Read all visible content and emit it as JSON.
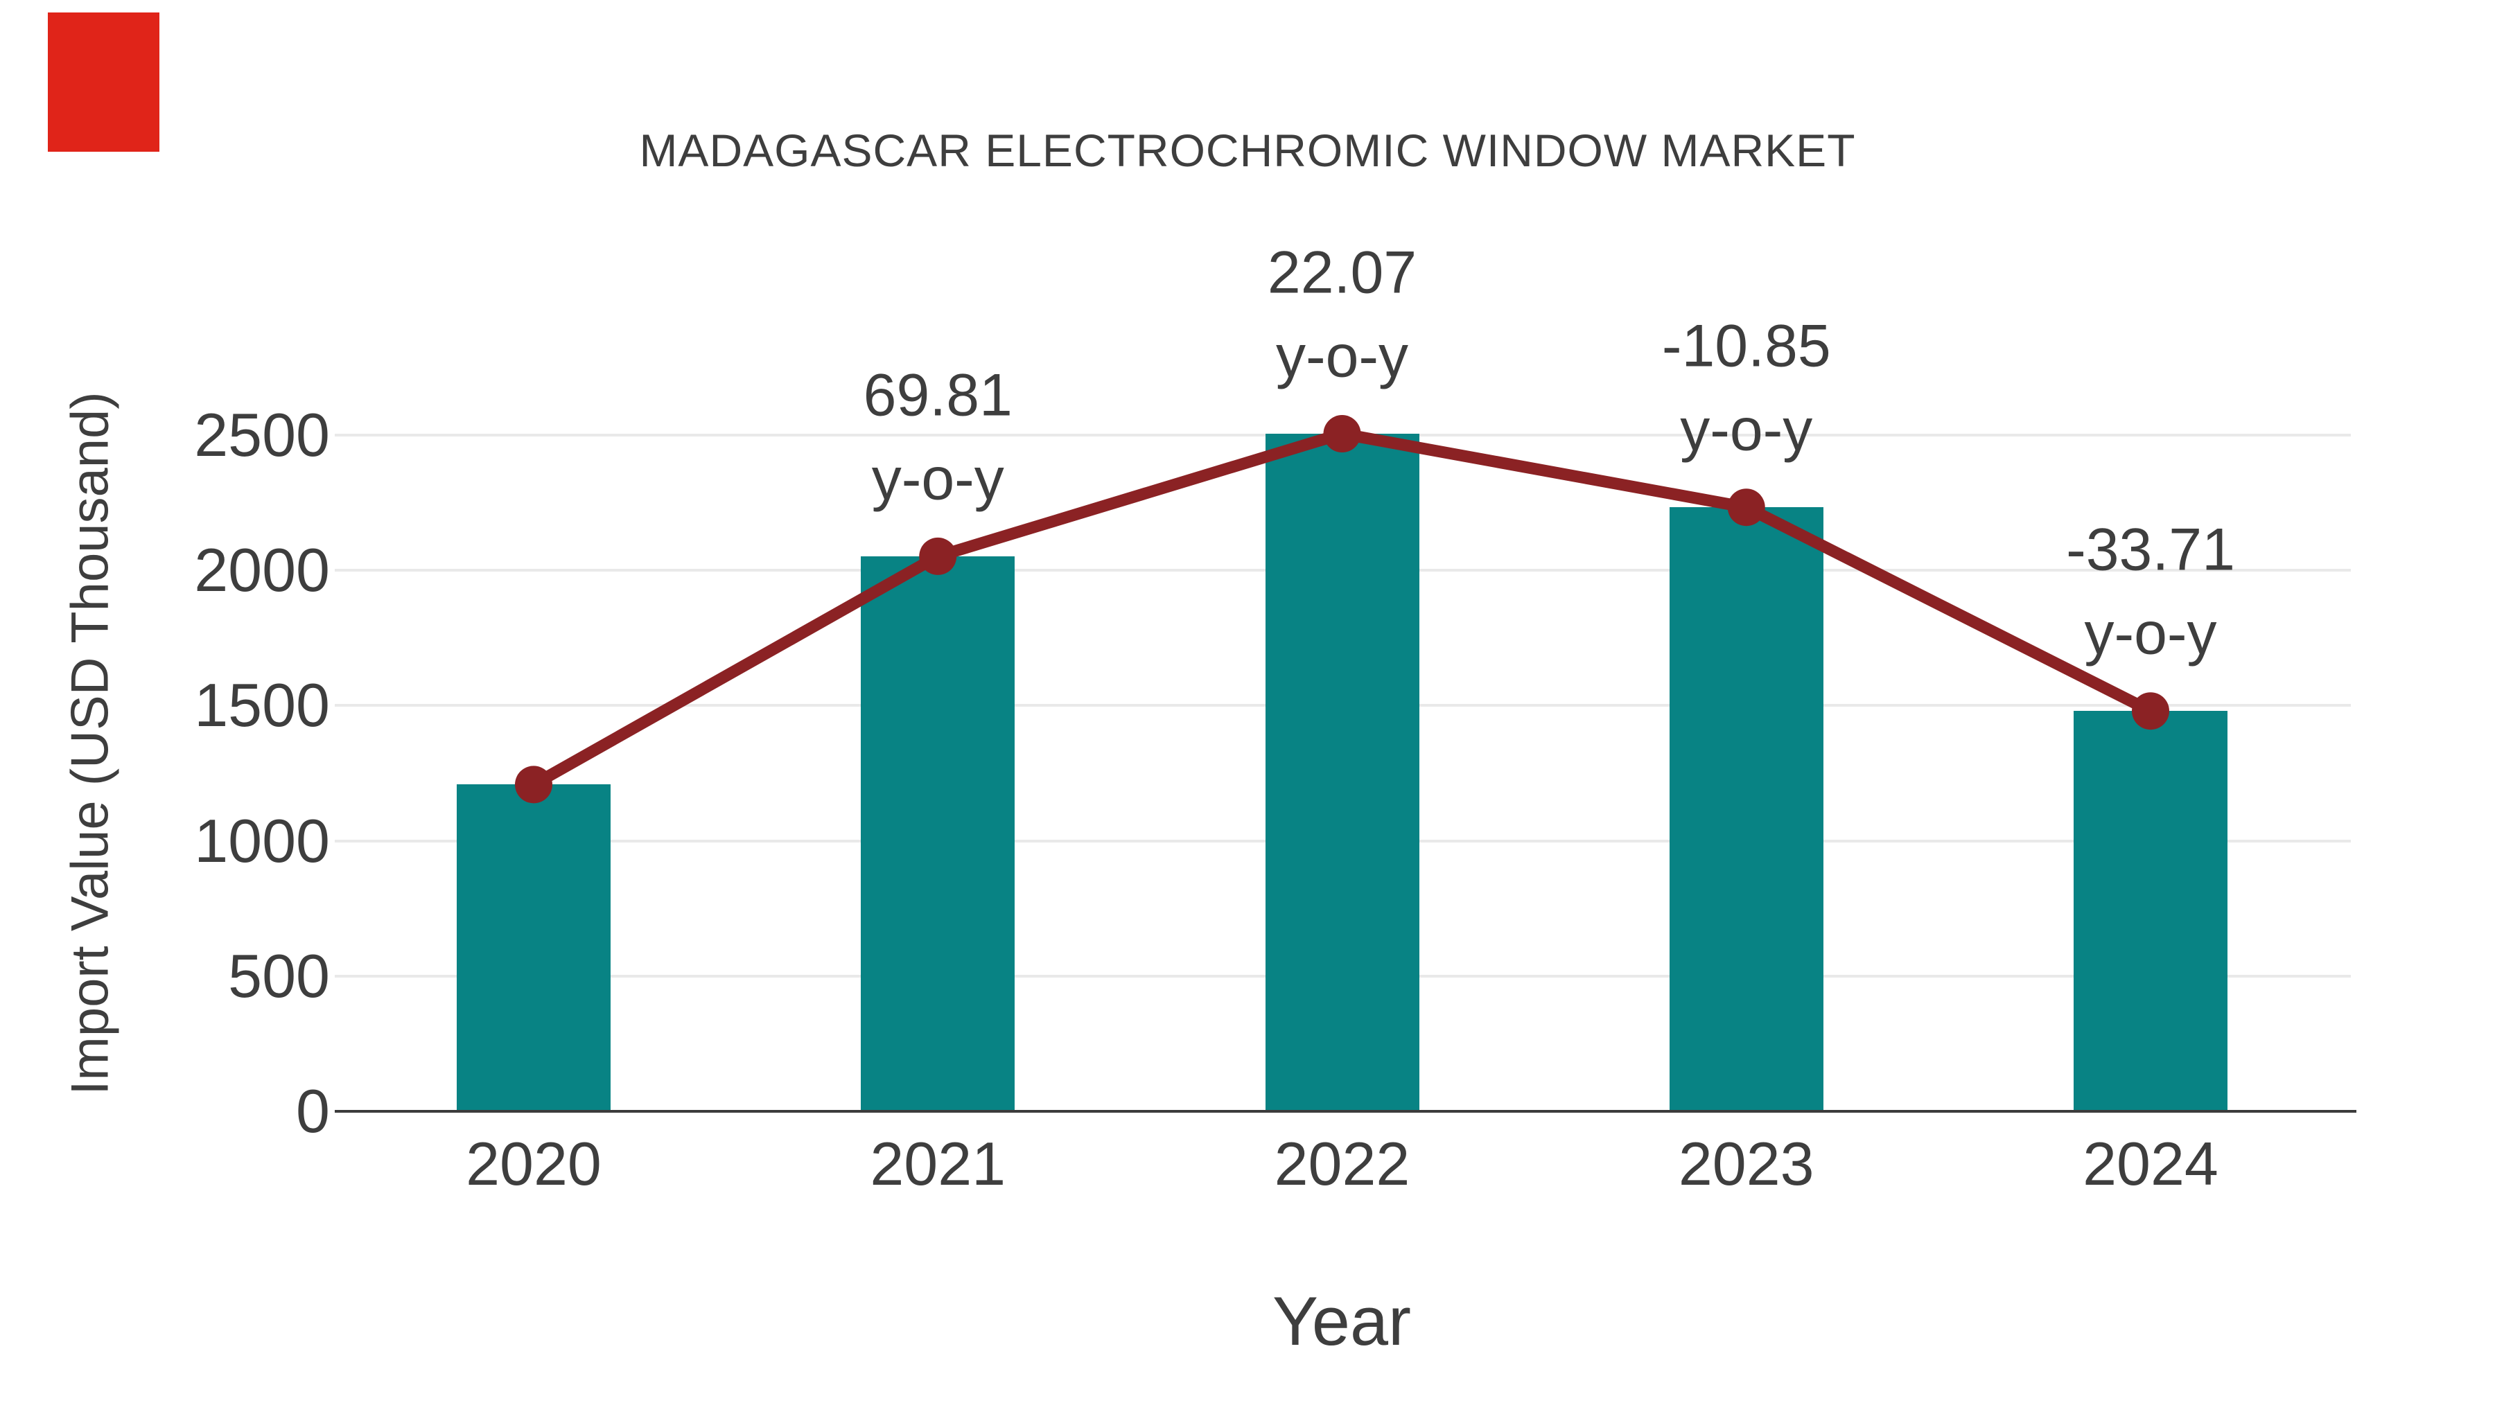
{
  "page": {
    "background": "#ffffff"
  },
  "overlay_marker": {
    "description": "solid red rectangle in top-left corner",
    "color": "#e02419"
  },
  "chart_data": {
    "type": "bar",
    "title": "MADAGASCAR ELECTROCHROMIC WINDOW MARKET",
    "xlabel": "Year",
    "ylabel": "Import Value (USD Thousand)",
    "categories": [
      "2020",
      "2021",
      "2022",
      "2023",
      "2024"
    ],
    "series": [
      {
        "name": "Import Value (USD Thousand)",
        "type": "bar",
        "color": "#088384",
        "values": [
          1208,
          2052,
          2505,
          2233,
          1480
        ]
      },
      {
        "name": "y-o-y change (%)",
        "type": "line",
        "color": "#8b2224",
        "values": [
          null,
          69.81,
          22.07,
          -10.85,
          -33.71
        ]
      }
    ],
    "annotations": [
      {
        "category": "2021",
        "line1": "69.81",
        "line2": "y-o-y"
      },
      {
        "category": "2022",
        "line1": "22.07",
        "line2": "y-o-y"
      },
      {
        "category": "2023",
        "line1": "-10.85",
        "line2": "y-o-y"
      },
      {
        "category": "2024",
        "line1": "-33.71",
        "line2": "y-o-y"
      }
    ],
    "yticks": [
      0,
      500,
      1000,
      1500,
      2000,
      2500
    ],
    "ylim": [
      0,
      2500
    ],
    "grid": true,
    "legend": false,
    "colors": {
      "text": "#3e3e3e",
      "grid": "#e9e9e9",
      "axis": "#3c3c3c"
    }
  }
}
